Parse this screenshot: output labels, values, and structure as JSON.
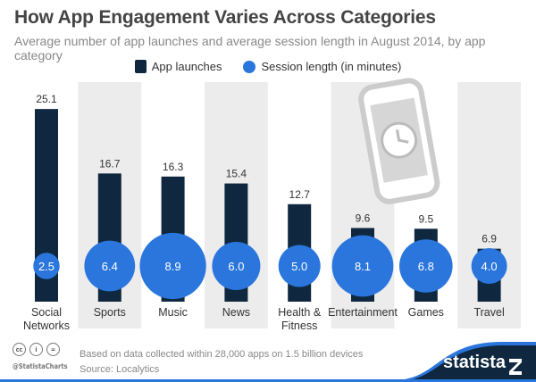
{
  "chart_data": {
    "type": "bar",
    "title": "How App Engagement Varies Across Categories",
    "subtitle": "Average number of app launches and average session length in August 2014, by app category",
    "categories": [
      "Social\nNetworks",
      "Sports",
      "Music",
      "News",
      "Health &\nFitness",
      "Entertainment",
      "Games",
      "Travel"
    ],
    "series": [
      {
        "name": "App launches",
        "type": "bar",
        "color": "#0f2840",
        "values": [
          25.1,
          16.7,
          16.3,
          15.4,
          12.7,
          9.6,
          9.5,
          6.9
        ]
      },
      {
        "name": "Session length (in minutes)",
        "type": "bubble",
        "color": "#2a76dd",
        "values": [
          2.5,
          6.4,
          8.9,
          6.0,
          5.0,
          8.1,
          6.8,
          4.0
        ]
      }
    ],
    "legend_position": "top-center",
    "grid": false
  },
  "footer": {
    "note": "Based on data collected within 28,000 apps on 1.5 billion devices",
    "source": "Source: Localytics",
    "handle": "@StatistaCharts",
    "brand": "statista"
  },
  "icons": [
    "creative-commons-icon",
    "attribution-icon",
    "no-derivatives-icon",
    "smartphone-clock-illustration"
  ]
}
